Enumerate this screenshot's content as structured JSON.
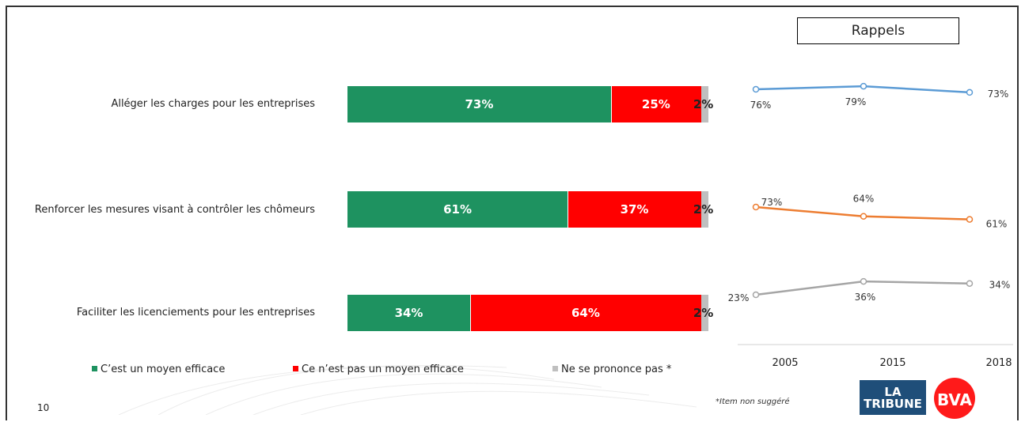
{
  "chart_data": [
    {
      "type": "bar",
      "stacked": true,
      "orientation": "horizontal",
      "categories": [
        "Alléger les charges pour les entreprises",
        "Renforcer les mesures visant à contrôler les chômeurs",
        "Faciliter les licenciements pour les entreprises"
      ],
      "series": [
        {
          "name": "C’est un moyen efficace",
          "values": [
            73,
            61,
            34
          ],
          "labels": [
            "73%",
            "61%",
            "34%"
          ],
          "color": "#1e9260"
        },
        {
          "name": "Ce n’est pas un moyen efficace",
          "values": [
            25,
            37,
            64
          ],
          "labels": [
            "25%",
            "37%",
            "64%"
          ],
          "color": "#ff0000"
        },
        {
          "name": "Ne se prononce pas *",
          "values": [
            2,
            2,
            2
          ],
          "labels": [
            "2%",
            "2%",
            "2%"
          ],
          "color": "#bfbfbf"
        }
      ],
      "xlim": [
        0,
        100
      ],
      "legend": "bottom"
    },
    {
      "type": "line",
      "title": "Rappels",
      "x": [
        "2005",
        "2015",
        "2018"
      ],
      "ylim": [
        0,
        100
      ],
      "series": [
        {
          "values": [
            76,
            79,
            73
          ],
          "labels": [
            "76%",
            "79%",
            "73%"
          ],
          "color": "#5b9bd5"
        },
        {
          "values": [
            73,
            64,
            61
          ],
          "labels": [
            "73%",
            "64%",
            "61%"
          ],
          "color": "#ed7d31"
        },
        {
          "values": [
            23,
            36,
            34
          ],
          "labels": [
            "23%",
            "36%",
            "34%"
          ],
          "color": "#a5a5a5"
        }
      ]
    }
  ],
  "footer": {
    "page_number": "10",
    "footnote": "*Item non suggéré",
    "logo_tribune": "LA TRIBUNE",
    "logo_bva": "BVA"
  }
}
